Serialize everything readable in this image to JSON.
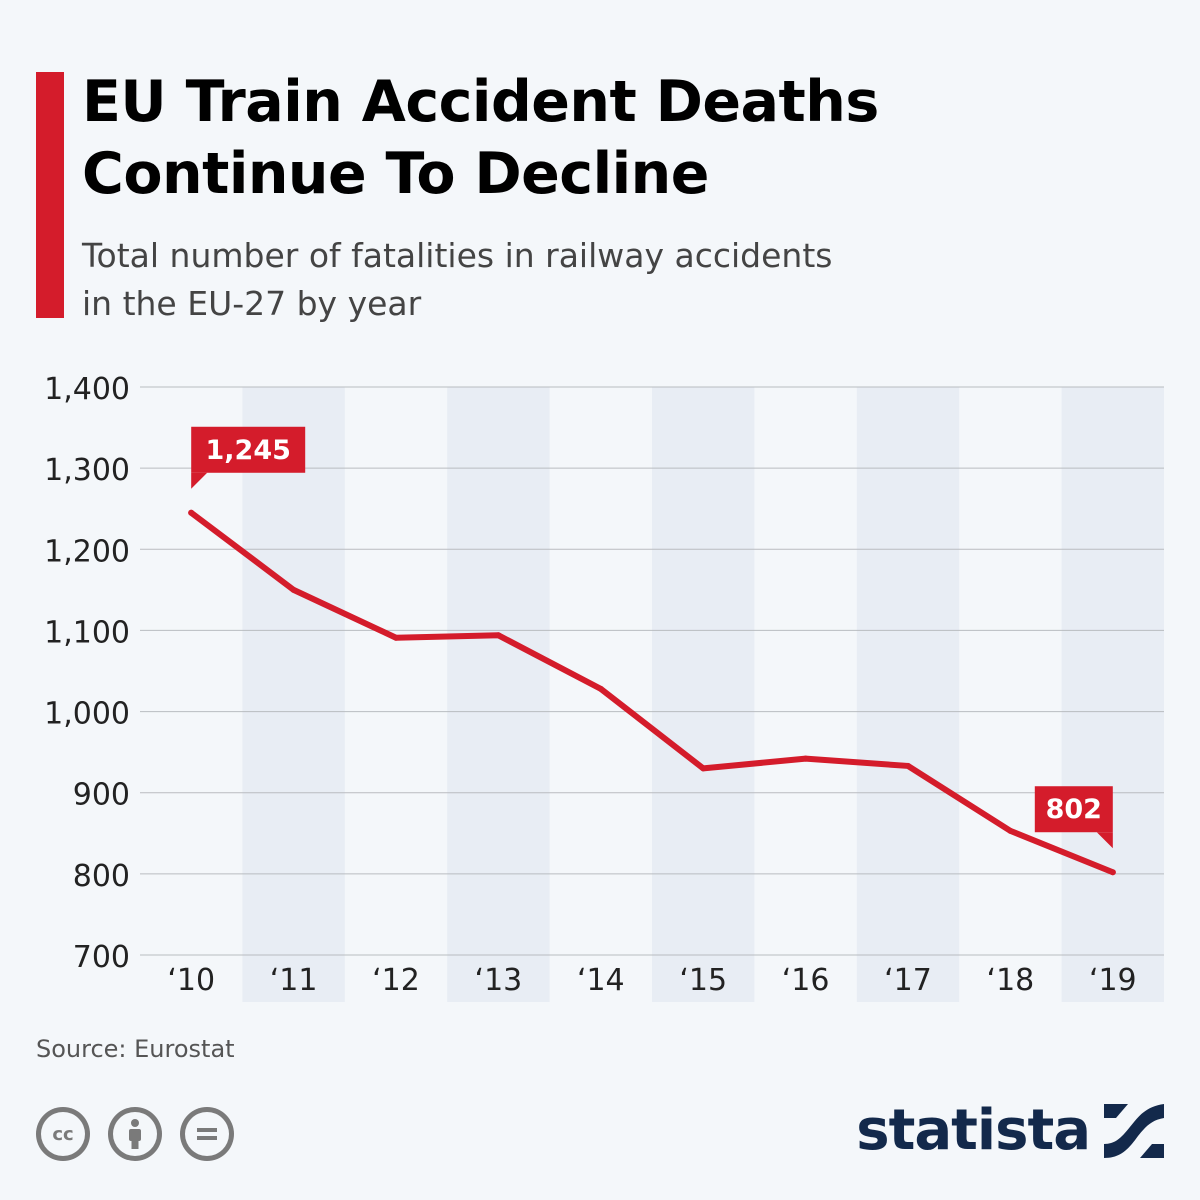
{
  "header": {
    "title_line1": "EU Train Accident Deaths",
    "title_line2": "Continue To Decline",
    "subtitle_line1": "Total number of fatalities in railway accidents",
    "subtitle_line2": "in the EU-27 by year"
  },
  "footer": {
    "source": "Source: Eurostat",
    "brand": "statista",
    "licence_icons": [
      "cc-icon",
      "attribution-icon",
      "no-derivatives-icon"
    ]
  },
  "colors": {
    "accent": "#d41c2b",
    "background": "#f4f7fa",
    "band": "#e8edf4",
    "brand": "#13294b"
  },
  "chart_data": {
    "type": "line",
    "categories": [
      "‘10",
      "‘11",
      "‘12",
      "‘13",
      "‘14",
      "‘15",
      "‘16",
      "‘17",
      "‘18",
      "‘19"
    ],
    "series": [
      {
        "values": [
          1245,
          1150,
          1091,
          1094,
          1028,
          930,
          942,
          933,
          853,
          802
        ]
      }
    ],
    "data_labels": [
      {
        "index": 0,
        "text": "1,245"
      },
      {
        "index": 9,
        "text": "802"
      }
    ],
    "ylim": [
      700,
      1400
    ],
    "yticks": [
      700,
      800,
      900,
      1000,
      1100,
      1200,
      1300,
      1400
    ],
    "ytick_labels": [
      "700",
      "800",
      "900",
      "1,000",
      "1,100",
      "1,200",
      "1,300",
      "1,400"
    ],
    "grid": true,
    "xlabel": "",
    "ylabel": ""
  }
}
